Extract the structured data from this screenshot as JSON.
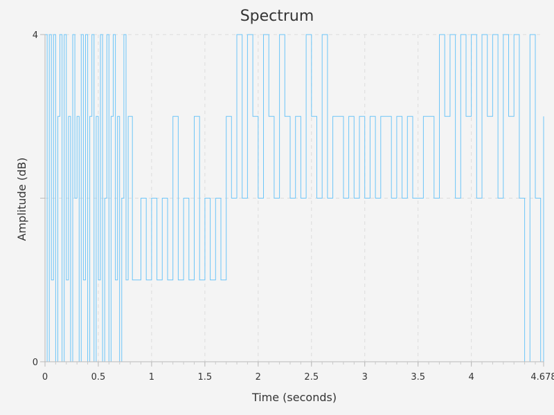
{
  "chart_data": {
    "type": "line",
    "title": "Spectrum",
    "xlabel": "Time (seconds)",
    "ylabel": "Amplitude (dB)",
    "xlim": [
      0,
      4.678
    ],
    "ylim": [
      0,
      4
    ],
    "x_ticks": [
      0,
      0.5,
      1,
      1.5,
      2,
      2.5,
      3,
      3.5,
      4,
      4.678
    ],
    "x_tick_labels": [
      "0",
      "0.5",
      "1",
      "1.5",
      "2",
      "2.5",
      "3",
      "3.5",
      "4",
      "4.678"
    ],
    "y_ticks": [
      0,
      2,
      4
    ],
    "y_tick_labels": [
      "0",
      "",
      "4"
    ],
    "grid": true,
    "line_color": "#6cc5f8",
    "series": [
      {
        "x": [
          0.0,
          0.02,
          0.04,
          0.06,
          0.08,
          0.1,
          0.12,
          0.14,
          0.16,
          0.18,
          0.2,
          0.22,
          0.24,
          0.26,
          0.28,
          0.3,
          0.32,
          0.34,
          0.36,
          0.38,
          0.4,
          0.42,
          0.44,
          0.46,
          0.48,
          0.5,
          0.52,
          0.54,
          0.56,
          0.58,
          0.6,
          0.62,
          0.64,
          0.66,
          0.68,
          0.7,
          0.72,
          0.74,
          0.76,
          0.78,
          0.8,
          0.82,
          0.84,
          0.9,
          0.95,
          1.0,
          1.05,
          1.1,
          1.15,
          1.2,
          1.25,
          1.3,
          1.35,
          1.4,
          1.45,
          1.5,
          1.55,
          1.6,
          1.65,
          1.7,
          1.75,
          1.8,
          1.85,
          1.9,
          1.95,
          2.0,
          2.05,
          2.1,
          2.15,
          2.2,
          2.25,
          2.3,
          2.35,
          2.4,
          2.45,
          2.5,
          2.55,
          2.6,
          2.65,
          2.7,
          2.75,
          2.8,
          2.85,
          2.9,
          2.95,
          3.0,
          3.05,
          3.1,
          3.15,
          3.2,
          3.25,
          3.3,
          3.35,
          3.4,
          3.45,
          3.5,
          3.55,
          3.6,
          3.65,
          3.7,
          3.75,
          3.8,
          3.85,
          3.9,
          3.95,
          4.0,
          4.05,
          4.1,
          4.15,
          4.2,
          4.25,
          4.3,
          4.35,
          4.4,
          4.45,
          4.5,
          4.55,
          4.6,
          4.65,
          4.678
        ],
        "y": [
          4,
          0,
          4,
          1,
          4,
          0,
          3,
          4,
          0,
          4,
          1,
          3,
          0,
          4,
          2,
          3,
          0,
          4,
          1,
          4,
          0,
          3,
          4,
          0,
          3,
          1,
          4,
          0,
          2,
          4,
          0,
          3,
          4,
          1,
          3,
          0,
          2,
          4,
          1,
          3,
          3,
          1,
          1,
          2,
          1,
          2,
          1,
          2,
          1,
          3,
          1,
          2,
          1,
          3,
          1,
          2,
          1,
          2,
          1,
          3,
          2,
          4,
          2,
          4,
          3,
          2,
          4,
          3,
          2,
          4,
          3,
          2,
          3,
          2,
          4,
          3,
          2,
          4,
          2,
          3,
          3,
          2,
          3,
          2,
          3,
          2,
          3,
          2,
          3,
          3,
          2,
          3,
          2,
          3,
          2,
          2,
          3,
          3,
          2,
          4,
          3,
          4,
          2,
          4,
          3,
          4,
          2,
          4,
          3,
          4,
          2,
          4,
          3,
          4,
          2,
          0,
          4,
          2,
          0,
          3
        ]
      }
    ]
  }
}
